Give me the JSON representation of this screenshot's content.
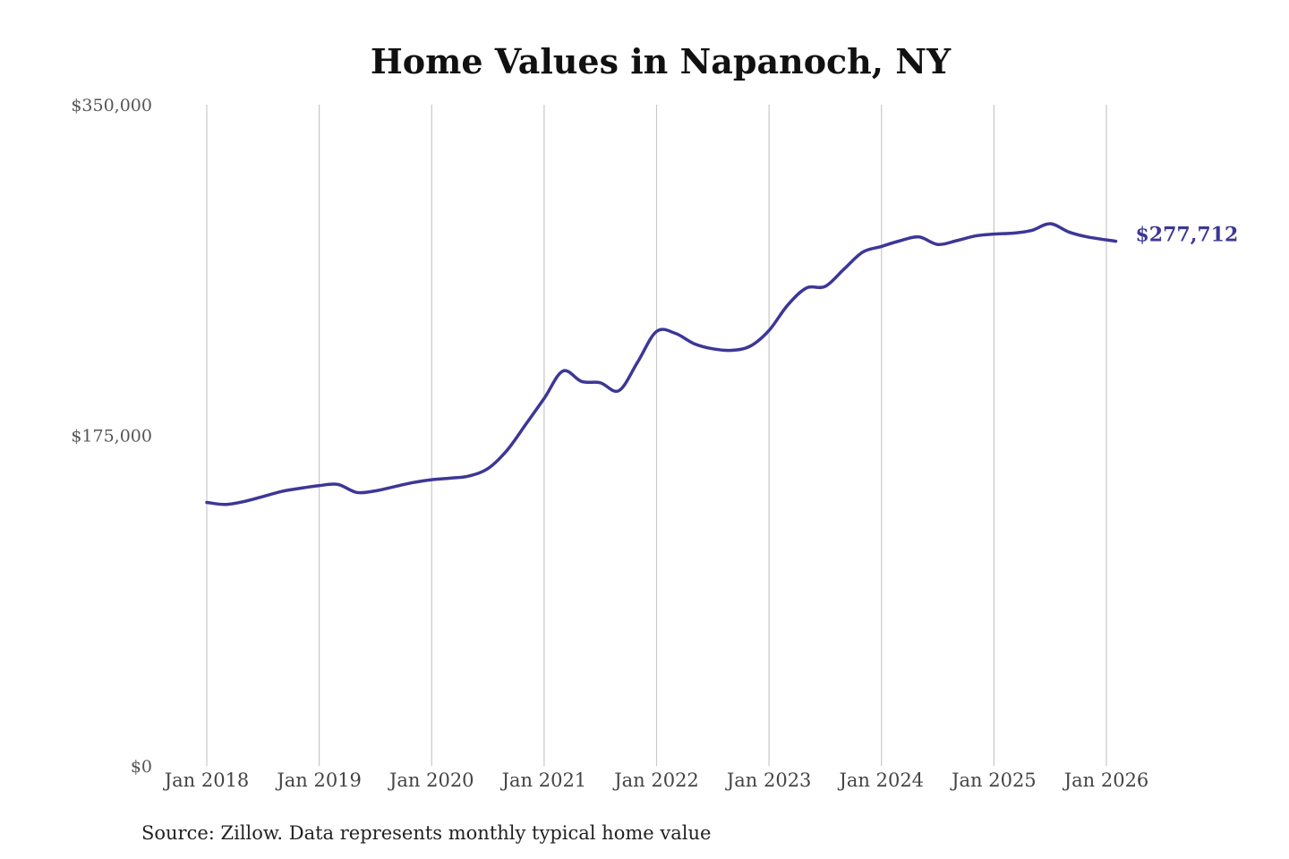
{
  "colors": {
    "series": "#3c3796",
    "background": "#ffffff",
    "grid": "#c8c8c8"
  },
  "chart_data": {
    "type": "line",
    "title": "Home Values in Napanoch, NY",
    "xlabel": "",
    "ylabel": "",
    "ylim": [
      0,
      350000
    ],
    "y_ticks": [
      {
        "value": 0,
        "label": "$0"
      },
      {
        "value": 175000,
        "label": "$175,000"
      },
      {
        "value": 350000,
        "label": "$350,000"
      }
    ],
    "x_range": [
      "2018-01",
      "2026-02"
    ],
    "x_ticks": [
      {
        "date": "2018-01",
        "label": "Jan 2018"
      },
      {
        "date": "2019-01",
        "label": "Jan 2019"
      },
      {
        "date": "2020-01",
        "label": "Jan 2020"
      },
      {
        "date": "2021-01",
        "label": "Jan 2021"
      },
      {
        "date": "2022-01",
        "label": "Jan 2022"
      },
      {
        "date": "2023-01",
        "label": "Jan 2023"
      },
      {
        "date": "2024-01",
        "label": "Jan 2024"
      },
      {
        "date": "2025-01",
        "label": "Jan 2025"
      },
      {
        "date": "2026-01",
        "label": "Jan 2026"
      }
    ],
    "grid": {
      "vertical": true,
      "horizontal": false
    },
    "legend": "none",
    "series": [
      {
        "x": [
          "2018-01",
          "2018-03",
          "2018-05",
          "2018-07",
          "2018-09",
          "2018-11",
          "2019-01",
          "2019-03",
          "2019-05",
          "2019-07",
          "2019-09",
          "2019-11",
          "2020-01",
          "2020-03",
          "2020-05",
          "2020-07",
          "2020-09",
          "2020-11",
          "2021-01",
          "2021-03",
          "2021-05",
          "2021-07",
          "2021-09",
          "2021-11",
          "2022-01",
          "2022-03",
          "2022-05",
          "2022-07",
          "2022-09",
          "2022-11",
          "2023-01",
          "2023-03",
          "2023-05",
          "2023-07",
          "2023-09",
          "2023-11",
          "2024-01",
          "2024-03",
          "2024-05",
          "2024-07",
          "2024-09",
          "2024-11",
          "2025-01",
          "2025-03",
          "2025-05",
          "2025-07",
          "2025-09",
          "2025-11",
          "2026-02"
        ],
        "values": [
          139500,
          138400,
          140000,
          142600,
          145300,
          147000,
          148400,
          149000,
          144800,
          145600,
          147800,
          150000,
          151500,
          152300,
          153500,
          157400,
          166800,
          180500,
          194500,
          209000,
          203500,
          202800,
          198700,
          214000,
          230000,
          229000,
          223500,
          220800,
          220000,
          222200,
          230500,
          244000,
          253000,
          253800,
          263000,
          272000,
          275000,
          278000,
          280000,
          276000,
          278000,
          280500,
          281500,
          282000,
          283400,
          287000,
          282600,
          280000,
          277712
        ]
      }
    ],
    "annotations": [
      {
        "text": "$277,712",
        "date": "2026-02",
        "value": 277712
      }
    ]
  },
  "footer": {
    "source": "Source: Zillow. Data represents monthly typical home value"
  }
}
